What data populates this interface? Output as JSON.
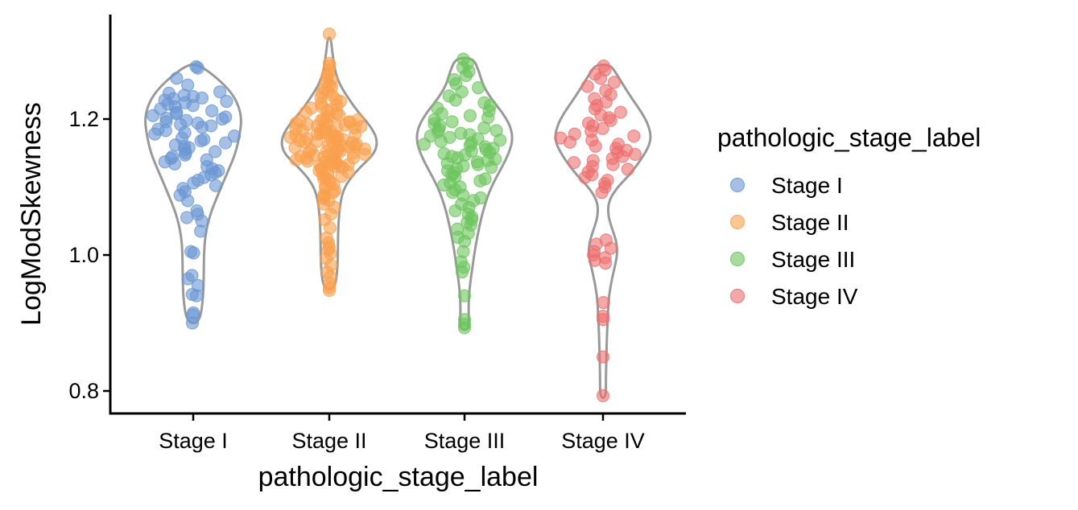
{
  "chart_data": {
    "type": "violin",
    "xlabel": "pathologic_stage_label",
    "ylabel": "LogModSkewness",
    "ylim": [
      0.77,
      1.35
    ],
    "yticks": [
      0.8,
      1.0,
      1.2
    ],
    "ytick_labels": [
      "0.8",
      "1.0",
      "1.2"
    ],
    "categories": [
      "Stage I",
      "Stage II",
      "Stage III",
      "Stage IV"
    ],
    "legend": {
      "title": "pathologic_stage_label",
      "position": "right",
      "entries": [
        "Stage I",
        "Stage II",
        "Stage III",
        "Stage IV"
      ]
    },
    "grid": false,
    "violin_outline_color": "#999999",
    "series": [
      {
        "name": "Stage I",
        "color": "#6A96D3",
        "range": [
          0.9,
          1.28
        ],
        "violin_profile": [
          [
            0.9,
            0.12
          ],
          [
            0.93,
            0.2
          ],
          [
            0.97,
            0.22
          ],
          [
            1.0,
            0.22
          ],
          [
            1.03,
            0.25
          ],
          [
            1.06,
            0.35
          ],
          [
            1.09,
            0.52
          ],
          [
            1.12,
            0.7
          ],
          [
            1.15,
            0.88
          ],
          [
            1.18,
            0.97
          ],
          [
            1.2,
            1.0
          ],
          [
            1.22,
            0.94
          ],
          [
            1.24,
            0.78
          ],
          [
            1.26,
            0.5
          ],
          [
            1.28,
            0.12
          ]
        ],
        "points": [
          1.277,
          1.275,
          1.26,
          1.25,
          1.24,
          1.238,
          1.235,
          1.233,
          1.231,
          1.23,
          1.228,
          1.226,
          1.224,
          1.222,
          1.22,
          1.218,
          1.215,
          1.212,
          1.21,
          1.208,
          1.205,
          1.203,
          1.201,
          1.2,
          1.198,
          1.196,
          1.194,
          1.192,
          1.19,
          1.188,
          1.185,
          1.183,
          1.18,
          1.178,
          1.175,
          1.172,
          1.17,
          1.168,
          1.165,
          1.162,
          1.16,
          1.158,
          1.155,
          1.152,
          1.15,
          1.147,
          1.145,
          1.142,
          1.14,
          1.137,
          1.134,
          1.13,
          1.127,
          1.124,
          1.121,
          1.118,
          1.114,
          1.11,
          1.106,
          1.102,
          1.098,
          1.093,
          1.088,
          1.08,
          1.065,
          1.06,
          1.055,
          1.05,
          1.035,
          1.005,
          1.003,
          0.97,
          0.965,
          0.955,
          0.942,
          0.94,
          0.915,
          0.912,
          0.9
        ]
      },
      {
        "name": "Stage II",
        "color": "#F9A04E",
        "range": [
          0.95,
          1.32
        ],
        "violin_profile": [
          [
            0.95,
            0.1
          ],
          [
            0.97,
            0.16
          ],
          [
            1.0,
            0.18
          ],
          [
            1.03,
            0.18
          ],
          [
            1.06,
            0.2
          ],
          [
            1.09,
            0.26
          ],
          [
            1.11,
            0.4
          ],
          [
            1.13,
            0.65
          ],
          [
            1.15,
            0.95
          ],
          [
            1.17,
            1.0
          ],
          [
            1.19,
            0.85
          ],
          [
            1.21,
            0.6
          ],
          [
            1.23,
            0.4
          ],
          [
            1.25,
            0.22
          ],
          [
            1.27,
            0.12
          ],
          [
            1.3,
            0.06
          ],
          [
            1.32,
            0.03
          ]
        ],
        "points": [
          1.325,
          1.282,
          1.278,
          1.272,
          1.266,
          1.262,
          1.258,
          1.254,
          1.25,
          1.247,
          1.244,
          1.241,
          1.238,
          1.235,
          1.232,
          1.229,
          1.226,
          1.223,
          1.22,
          1.218,
          1.216,
          1.214,
          1.212,
          1.21,
          1.208,
          1.206,
          1.204,
          1.202,
          1.2,
          1.199,
          1.198,
          1.197,
          1.196,
          1.195,
          1.194,
          1.193,
          1.192,
          1.191,
          1.19,
          1.189,
          1.188,
          1.187,
          1.186,
          1.185,
          1.184,
          1.183,
          1.182,
          1.181,
          1.18,
          1.179,
          1.178,
          1.177,
          1.176,
          1.175,
          1.174,
          1.173,
          1.172,
          1.171,
          1.17,
          1.169,
          1.168,
          1.167,
          1.166,
          1.165,
          1.164,
          1.163,
          1.162,
          1.161,
          1.16,
          1.159,
          1.158,
          1.157,
          1.156,
          1.155,
          1.154,
          1.153,
          1.152,
          1.151,
          1.15,
          1.149,
          1.148,
          1.147,
          1.146,
          1.145,
          1.144,
          1.143,
          1.142,
          1.141,
          1.14,
          1.139,
          1.138,
          1.137,
          1.136,
          1.135,
          1.134,
          1.133,
          1.132,
          1.131,
          1.13,
          1.129,
          1.128,
          1.126,
          1.124,
          1.122,
          1.12,
          1.118,
          1.116,
          1.114,
          1.112,
          1.11,
          1.107,
          1.104,
          1.101,
          1.098,
          1.095,
          1.092,
          1.089,
          1.086,
          1.083,
          1.08,
          1.075,
          1.07,
          1.06,
          1.052,
          1.04,
          1.025,
          1.018,
          1.012,
          1.008,
          1.002,
          0.995,
          0.985,
          0.975,
          0.968,
          0.958,
          0.952,
          0.948
        ]
      },
      {
        "name": "Stage III",
        "color": "#6CC45E",
        "range": [
          0.89,
          1.29
        ],
        "violin_profile": [
          [
            0.89,
            0.1
          ],
          [
            0.92,
            0.08
          ],
          [
            0.95,
            0.1
          ],
          [
            0.98,
            0.16
          ],
          [
            1.01,
            0.22
          ],
          [
            1.04,
            0.3
          ],
          [
            1.07,
            0.4
          ],
          [
            1.1,
            0.55
          ],
          [
            1.13,
            0.78
          ],
          [
            1.15,
            0.92
          ],
          [
            1.17,
            1.0
          ],
          [
            1.19,
            0.95
          ],
          [
            1.21,
            0.78
          ],
          [
            1.23,
            0.55
          ],
          [
            1.25,
            0.38
          ],
          [
            1.27,
            0.3
          ],
          [
            1.29,
            0.18
          ]
        ],
        "points": [
          1.288,
          1.282,
          1.276,
          1.27,
          1.264,
          1.258,
          1.252,
          1.246,
          1.24,
          1.234,
          1.228,
          1.224,
          1.22,
          1.216,
          1.212,
          1.208,
          1.205,
          1.202,
          1.199,
          1.196,
          1.193,
          1.19,
          1.187,
          1.185,
          1.183,
          1.181,
          1.179,
          1.177,
          1.175,
          1.173,
          1.171,
          1.169,
          1.167,
          1.165,
          1.163,
          1.161,
          1.159,
          1.157,
          1.155,
          1.153,
          1.151,
          1.149,
          1.147,
          1.145,
          1.143,
          1.141,
          1.139,
          1.137,
          1.135,
          1.133,
          1.131,
          1.129,
          1.127,
          1.124,
          1.121,
          1.118,
          1.115,
          1.112,
          1.109,
          1.106,
          1.103,
          1.1,
          1.096,
          1.092,
          1.088,
          1.084,
          1.08,
          1.075,
          1.07,
          1.065,
          1.06,
          1.056,
          1.052,
          1.048,
          1.044,
          1.038,
          1.032,
          1.026,
          1.02,
          1.005,
          0.99,
          0.982,
          0.975,
          0.94,
          0.905,
          0.898,
          0.893
        ]
      },
      {
        "name": "Stage IV",
        "color": "#EC6F6F",
        "range": [
          0.79,
          1.28
        ],
        "violin_profile": [
          [
            0.79,
            0.06
          ],
          [
            0.82,
            0.06
          ],
          [
            0.85,
            0.07
          ],
          [
            0.88,
            0.08
          ],
          [
            0.91,
            0.1
          ],
          [
            0.94,
            0.12
          ],
          [
            0.97,
            0.2
          ],
          [
            1.0,
            0.3
          ],
          [
            1.02,
            0.28
          ],
          [
            1.04,
            0.18
          ],
          [
            1.06,
            0.1
          ],
          [
            1.08,
            0.12
          ],
          [
            1.1,
            0.3
          ],
          [
            1.12,
            0.58
          ],
          [
            1.15,
            0.88
          ],
          [
            1.17,
            1.0
          ],
          [
            1.19,
            0.95
          ],
          [
            1.21,
            0.8
          ],
          [
            1.23,
            0.6
          ],
          [
            1.25,
            0.42
          ],
          [
            1.27,
            0.25
          ],
          [
            1.28,
            0.14
          ]
        ],
        "points": [
          1.278,
          1.272,
          1.266,
          1.26,
          1.254,
          1.248,
          1.242,
          1.236,
          1.23,
          1.225,
          1.22,
          1.215,
          1.21,
          1.206,
          1.202,
          1.198,
          1.194,
          1.19,
          1.186,
          1.182,
          1.178,
          1.175,
          1.172,
          1.169,
          1.166,
          1.163,
          1.16,
          1.157,
          1.154,
          1.151,
          1.148,
          1.145,
          1.142,
          1.139,
          1.136,
          1.133,
          1.13,
          1.126,
          1.122,
          1.118,
          1.114,
          1.11,
          1.105,
          1.1,
          1.092,
          1.022,
          1.016,
          1.01,
          1.005,
          1.0,
          0.996,
          0.992,
          0.988,
          0.93,
          0.91,
          0.905,
          0.85,
          0.793
        ]
      }
    ]
  }
}
